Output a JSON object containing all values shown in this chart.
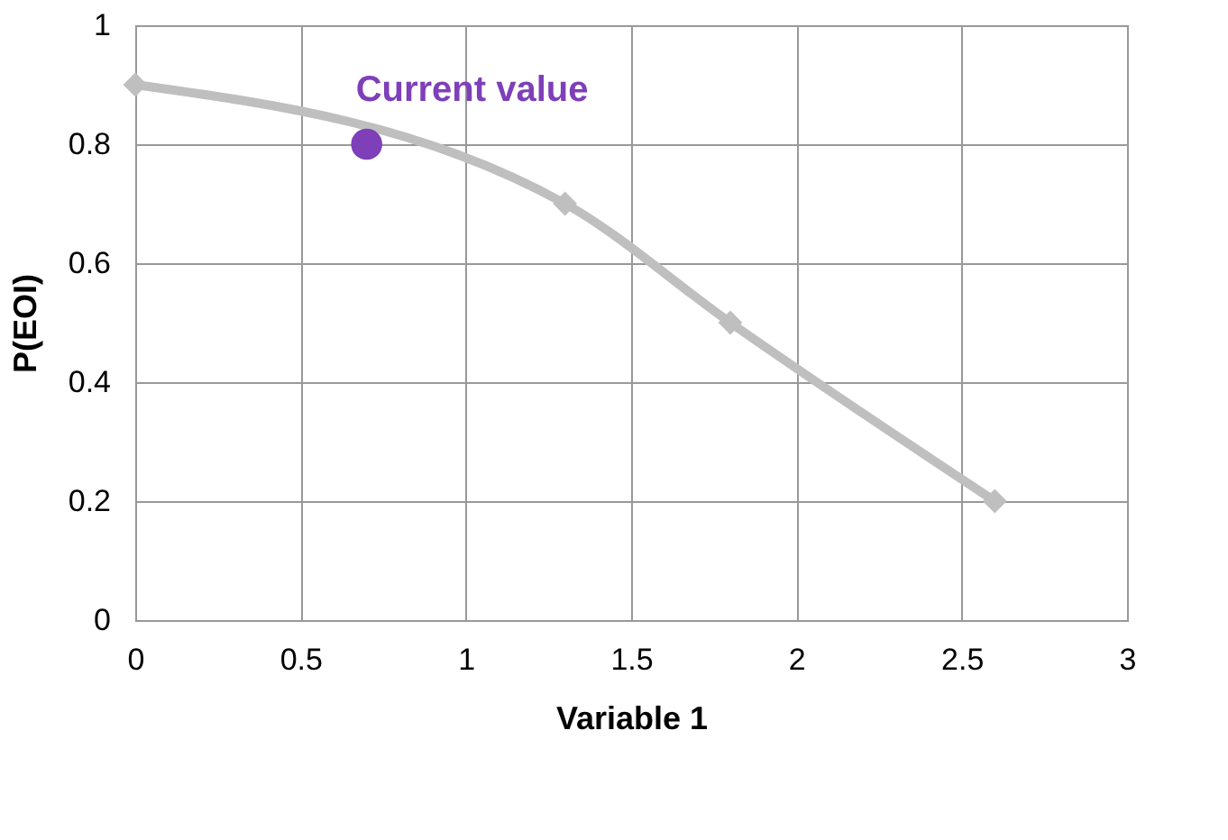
{
  "chart_data": {
    "type": "line",
    "xlabel": "Variable 1",
    "ylabel": "P(EOI)",
    "xlim": [
      0,
      3
    ],
    "xticks": [
      0,
      0.5,
      1,
      1.5,
      2,
      2.5,
      3
    ],
    "ylim": [
      0,
      1
    ],
    "yticks": [
      0,
      0.2,
      0.4,
      0.6,
      0.8,
      1
    ],
    "grid": true,
    "line_style": "solid",
    "series": [
      {
        "color": "#bfbfbf",
        "marker": "diamond",
        "x": [
          0,
          1.3,
          1.8,
          2.6
        ],
        "values": [
          0.9,
          0.7,
          0.5,
          0.2
        ]
      },
      {
        "type": "scatter",
        "color": "#7e3fb8",
        "marker": "circle",
        "x": [
          0.7
        ],
        "values": [
          0.8
        ]
      }
    ],
    "annotations": [
      {
        "text": "Current value",
        "x": 0.7,
        "y": 0.8
      }
    ]
  }
}
